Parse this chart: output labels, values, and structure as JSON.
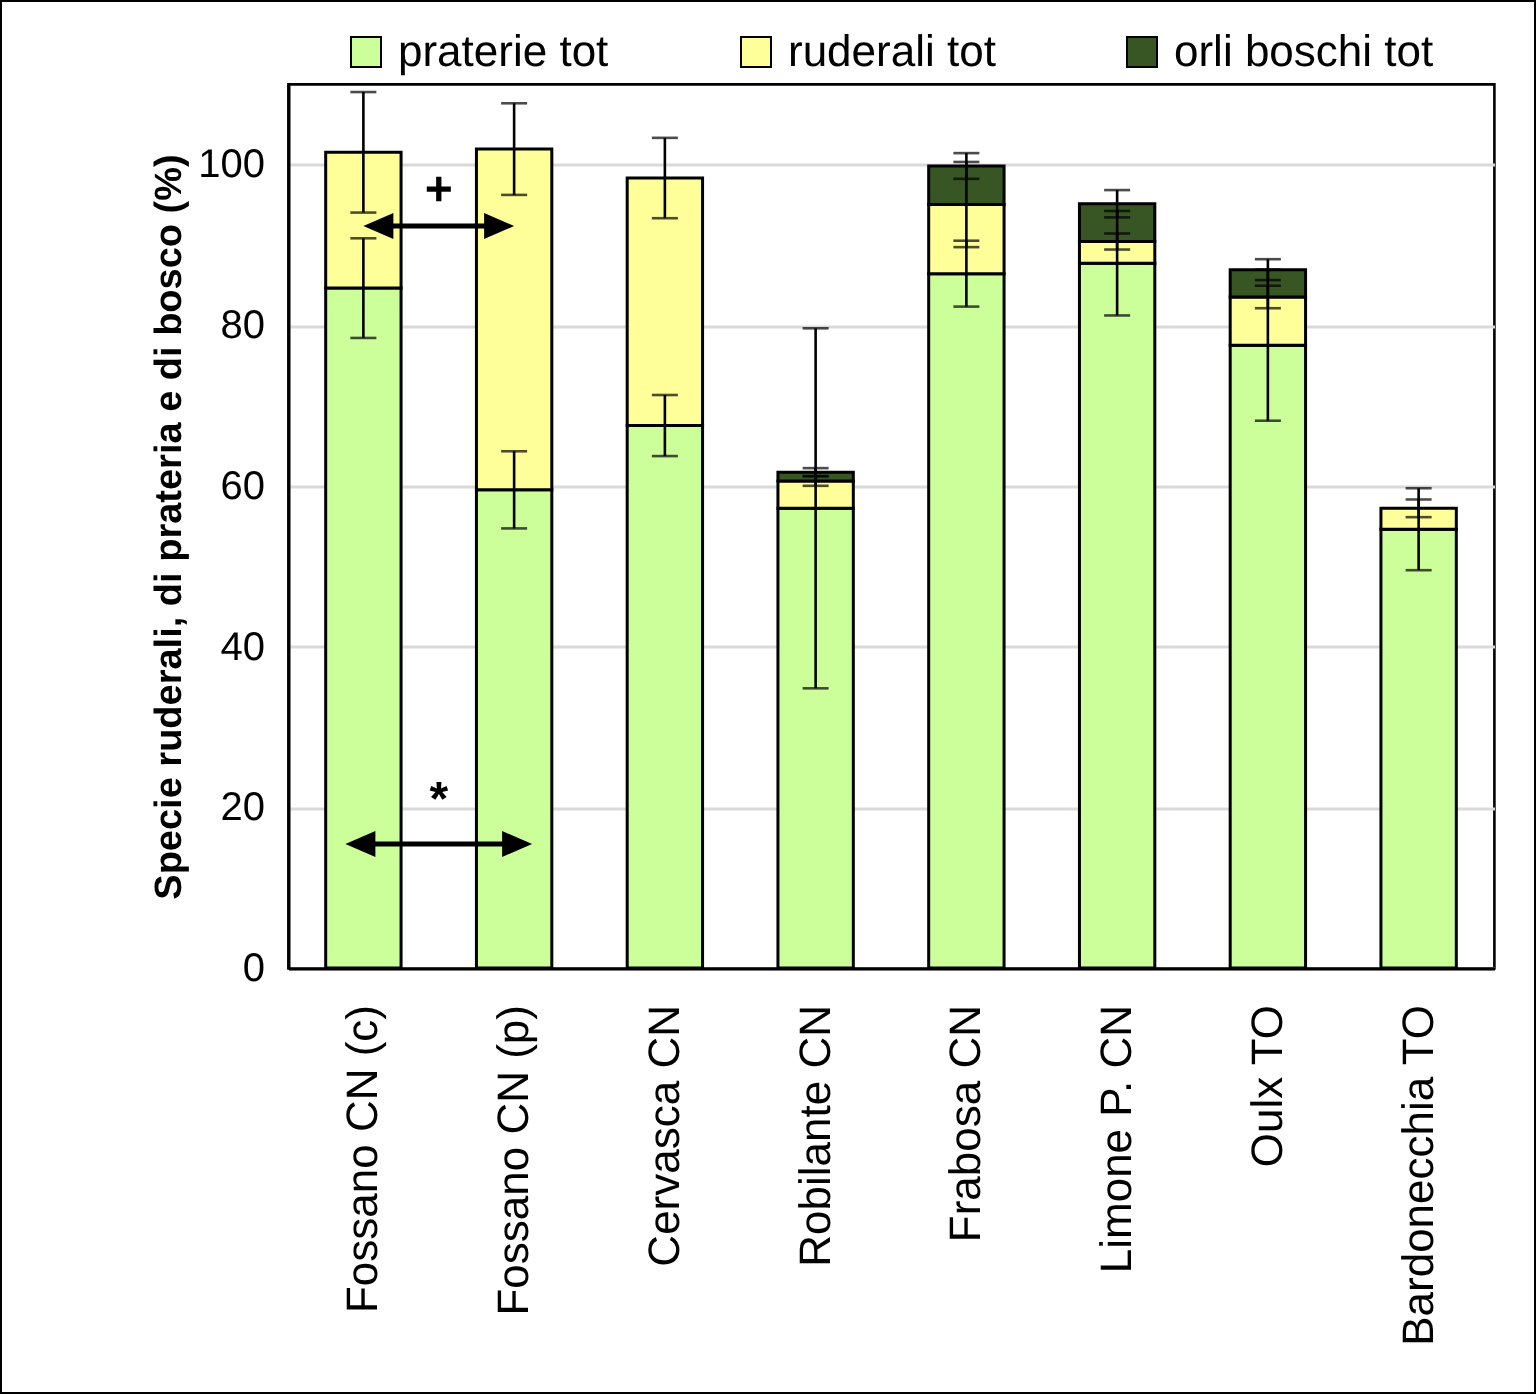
{
  "chart_data": {
    "type": "bar",
    "stacked": true,
    "ylabel": "Specie ruderali, di prateria e di bosco (%)",
    "categories": [
      "Fossano CN (c)",
      "Fossano CN (p)",
      "Cervasca CN",
      "Robilante CN",
      "Frabosa CN",
      "Limone P. CN",
      "Oulx TO",
      "Bardonecchia TO"
    ],
    "series": [
      {
        "name": "praterie tot",
        "color": "#ccff99",
        "values": [
          84.6,
          59.5,
          67.5,
          57.2,
          86.4,
          87.7,
          77.5,
          54.6
        ],
        "errors": [
          6.2,
          4.8,
          3.8,
          22.4,
          4.1,
          6.5,
          9.4,
          5.1
        ]
      },
      {
        "name": "ruderali tot",
        "color": "#ffff99",
        "values": [
          16.9,
          42.4,
          30.8,
          3.4,
          8.6,
          2.7,
          6.0,
          2.6
        ],
        "errors": [
          7.5,
          5.7,
          5.0,
          0.6,
          5.3,
          1.0,
          1.4,
          1.1
        ]
      },
      {
        "name": "orli boschi tot",
        "color": "#375623",
        "values": [
          null,
          null,
          null,
          1.1,
          4.8,
          4.7,
          3.4,
          null
        ],
        "errors": [
          null,
          null,
          null,
          0.5,
          1.6,
          1.7,
          1.3,
          null
        ]
      }
    ],
    "ylim": [
      0,
      110
    ],
    "yticks": [
      0,
      20,
      40,
      60,
      80,
      100
    ],
    "grid": "y",
    "legend": "top",
    "annotations": [
      "+",
      "*"
    ]
  }
}
